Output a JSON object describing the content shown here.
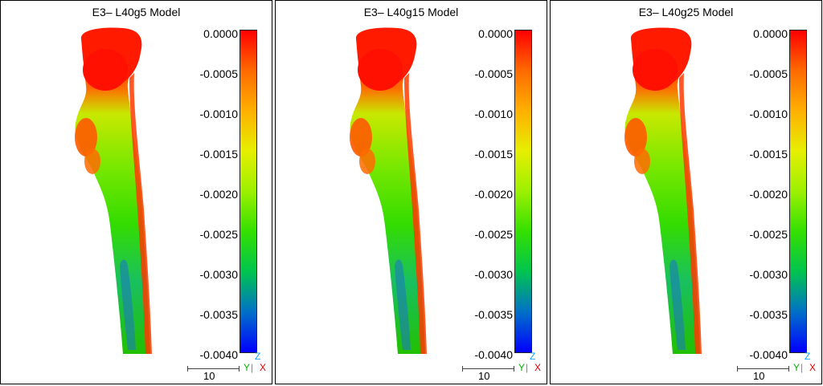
{
  "panels": [
    {
      "title": "E3– L40g5 Model"
    },
    {
      "title": "E3– L40g15 Model"
    },
    {
      "title": "E3– L40g25 Model"
    }
  ],
  "colorbar": {
    "ticks": [
      "0.0000",
      "-0.0005",
      "-0.0010",
      "-0.0015",
      "-0.0020",
      "-0.0025",
      "-0.0030",
      "-0.0035",
      "-0.0040"
    ],
    "colors": [
      "#ff0000",
      "#ff6a00",
      "#ffb000",
      "#e6ef00",
      "#9cf000",
      "#34e000",
      "#00c450",
      "#0070c8",
      "#0000ff"
    ]
  },
  "axes": {
    "z": "Z",
    "y": "Y",
    "sep": "|",
    "x": "X"
  },
  "scale": {
    "label": "10"
  }
}
